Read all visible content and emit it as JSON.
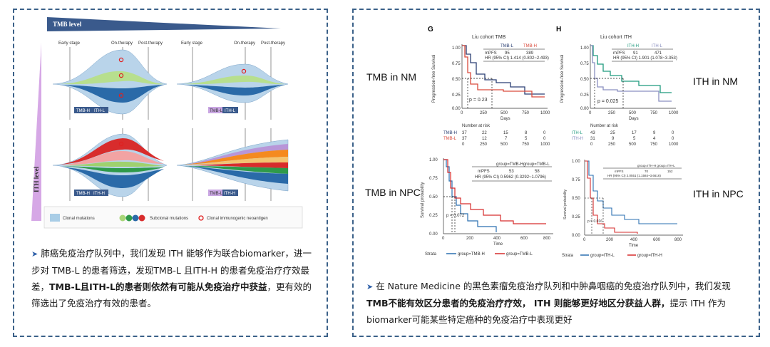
{
  "left": {
    "tmb_level": "TMB level",
    "ith_level": "ITH level",
    "top_panels": [
      {
        "early": "Early stage",
        "on": "On-therapy",
        "post": "Post-therapy"
      },
      {
        "early": "Early stage",
        "on": "On-therapy",
        "post": "Post-therapy"
      }
    ],
    "panel_tags": [
      "TMB-H",
      "ITH-L",
      "TMB-L",
      "ITH-L",
      "TMB-H",
      "ITH-H",
      "TMB-L",
      "ITH-H"
    ],
    "legend": {
      "clonal": "Clonal mutations",
      "subclonal": "Subclonal mutations",
      "neoantigen": "Clonal immunogenic neoantigen"
    },
    "text_plain_1": "肺癌免疫治疗队列中，我们发现 ITH 能够作为联合biomarker，进一步对 TMB-L 的患者筛选，发现TMB-L 且ITH-H 的患者免疫治疗疗效最差，",
    "text_bold": "TMB-L且ITH-L的患者则依然有可能从免疫治疗中获益",
    "text_plain_2": "，更有效的筛选出了免疫治疗有效的患者。"
  },
  "right": {
    "label_tmb_nm": "TMB in NM",
    "label_ith_nm": "ITH in NM",
    "label_tmb_npc": "TMB in NPC",
    "label_ith_npc": "ITH in NPC",
    "g": {
      "letter": "G",
      "title": "Liu cohort TMB",
      "ylabel": "Progression-free Survival",
      "xlabel": "Days",
      "legend_l": "TMB-L",
      "legend_h": "TMB-H",
      "stat_row1": "mPFS",
      "stat_v1": "95",
      "stat_v2": "389",
      "stat_row2": "HR (95% CI)  1.414  (0.802~2.493)",
      "pval": "p = 0.23",
      "risk_title": "Number at risk",
      "risk_rows": [
        {
          "name": "TMB-H",
          "vals": [
            "37",
            "22",
            "15",
            "8",
            "0"
          ]
        },
        {
          "name": "TMB-L",
          "vals": [
            "37",
            "12",
            "7",
            "5",
            "0"
          ]
        }
      ]
    },
    "h": {
      "letter": "H",
      "title": "Liu cohort ITH",
      "ylabel": "Progression-free Survival",
      "xlabel": "Days",
      "legend_h": "ITH-H",
      "legend_l": "ITH-L",
      "stat_row1": "mPFS",
      "stat_v1": "91",
      "stat_v2": "471",
      "stat_row2": "HR (95% CI)  1.901  (1.078~3.353)",
      "pval": "p = 0.025",
      "risk_title": "Number at risk",
      "risk_rows": [
        {
          "name": "ITH-L",
          "vals": [
            "43",
            "25",
            "17",
            "9",
            "0"
          ]
        },
        {
          "name": "ITH-H",
          "vals": [
            "31",
            "9",
            "5",
            "4",
            "0"
          ]
        }
      ]
    },
    "npc_tmb": {
      "ylabel": "Survival probability",
      "xlabel": "Time",
      "stat_head": "group=TMB-Hgroup=TMB-L",
      "stat_r1": "mPFS",
      "stat_r1a": "53",
      "stat_r1b": "58",
      "stat_r2": "HR (95% CI)   0.5962   (0.3292~1.0796)",
      "pval": "p = 0.072",
      "strata": "Strata",
      "leg_a": "group=TMB-H",
      "leg_b": "group=TMB-L"
    },
    "npc_ith": {
      "ylabel": "Survival probability",
      "xlabel": "Time",
      "stat_head": "group=ITH-H    group=ITH-L",
      "stat_r1": "mPFS",
      "stat_r1a": "70",
      "stat_r1b": "152",
      "stat_r2": "HR (95% CI)   2.0551   (1.1584~3.6616)",
      "pval": "p = 0.016",
      "strata": "Strata",
      "leg_a": "group=ITH-L",
      "leg_b": "group=ITH-H"
    },
    "text_plain_1": "在 Nature Medicine 的黑色素瘤免疫治疗队列和中肿鼻咽癌的免疫治疗队列中，我们发现",
    "text_bold": "TMB不能有效区分患者的免疫治疗疗效， ITH 则能够更好地区分获益人群，",
    "text_plain_2": "提示 ITH 作为biomarker可能某些特定癌种的免疫治疗中表现更好"
  },
  "colors": {
    "border": "#3b6189",
    "navy": "#3a5a8c",
    "lavender": "#d6a8e6",
    "km_red": "#d94a3c",
    "km_blue": "#2b3f73",
    "km_teal": "#1f9a7e",
    "km_purple": "#8a8fc0",
    "npc_red": "#d62c2c",
    "npc_blue": "#2a6fb0"
  }
}
